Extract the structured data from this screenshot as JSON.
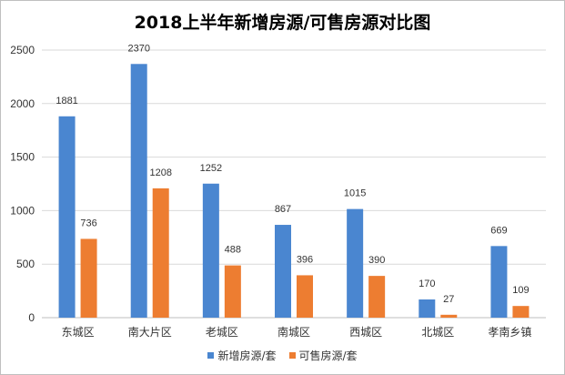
{
  "chart_data": {
    "type": "bar",
    "title": "2018上半年新增房源/可售房源对比图",
    "categories": [
      "东城区",
      "南大片区",
      "老城区",
      "南城区",
      "西城区",
      "北城区",
      "孝南乡镇"
    ],
    "series": [
      {
        "name": "新增房源/套",
        "color": "#4a86d0",
        "values": [
          1881,
          2370,
          1252,
          867,
          1015,
          170,
          669
        ]
      },
      {
        "name": "可售房源/套",
        "color": "#ed7d31",
        "values": [
          736,
          1208,
          488,
          396,
          390,
          27,
          109
        ]
      }
    ],
    "ylim": [
      0,
      2500
    ],
    "yticks": [
      0,
      500,
      1000,
      1500,
      2000,
      2500
    ],
    "grid": true,
    "legend": "bottom"
  }
}
